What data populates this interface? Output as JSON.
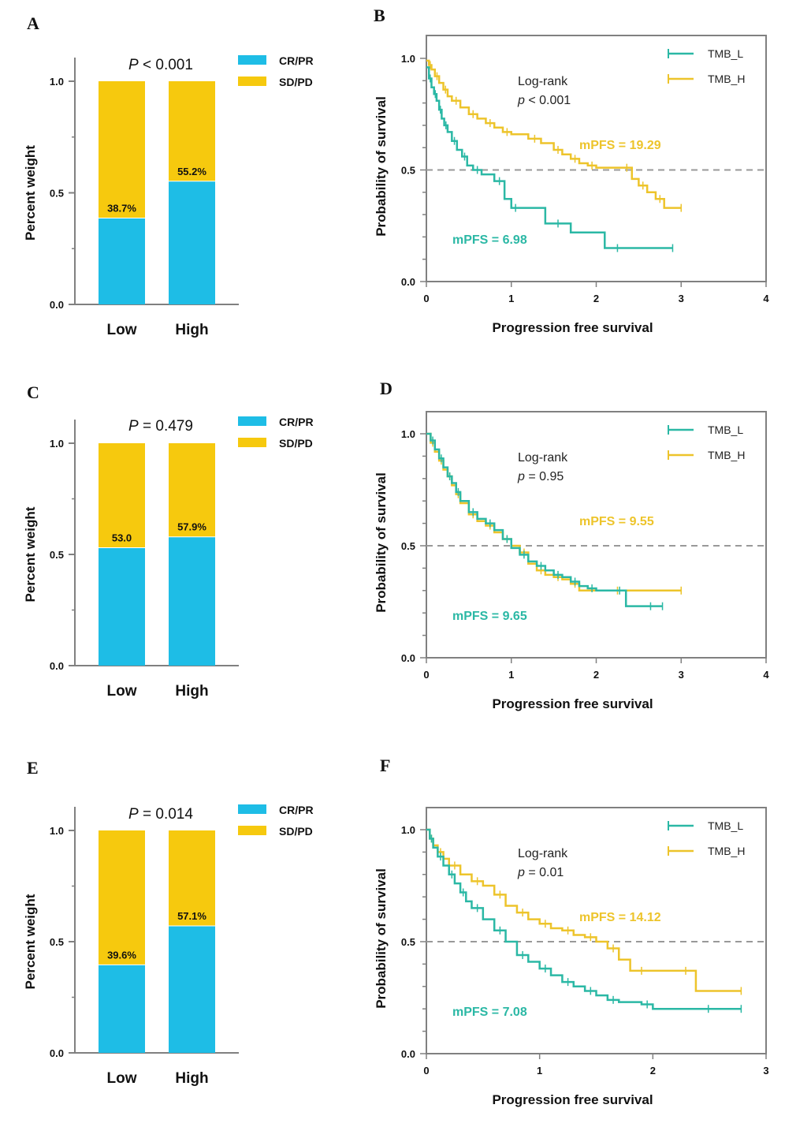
{
  "colors": {
    "cr_pr": "#1EBDE6",
    "sd_pd": "#F6C90E",
    "tmb_l": "#2BB8A5",
    "tmb_h": "#EDC42B",
    "axis": "#808080",
    "ref_line": "#999999"
  },
  "chart_data": [
    {
      "id": "A",
      "type": "bar",
      "panel_label": "A",
      "p_prefix": "P",
      "p_rest": " < 0.001",
      "ylabel": "Percent weight",
      "ylim": [
        0,
        1.0
      ],
      "yticks": [
        "0.0",
        "0.5",
        "1.0"
      ],
      "categories": [
        "Low",
        "High"
      ],
      "series": [
        {
          "name": "CR/PR",
          "values": [
            0.387,
            0.552
          ]
        },
        {
          "name": "SD/PD",
          "values": [
            0.613,
            0.448
          ]
        }
      ],
      "bar_labels": [
        "38.7%",
        "55.2%"
      ]
    },
    {
      "id": "B",
      "type": "line",
      "panel_label": "B",
      "xlabel": "Progression free survival",
      "ylabel": "Probability of survival",
      "xlim": [
        0,
        4
      ],
      "ylim": [
        0,
        1.0
      ],
      "xticks": [
        "0",
        "1",
        "2",
        "3",
        "4"
      ],
      "yticks": [
        "0.0",
        "0.5",
        "1.0"
      ],
      "legend": [
        "TMB_L",
        "TMB_H"
      ],
      "logrank": "Log-rank",
      "p_prefix": "p",
      "p_rest": " < 0.001",
      "mpfs_h": "mPFS = 19.29",
      "mpfs_l": "mPFS = 6.98",
      "series": [
        {
          "name": "TMB_L",
          "x": [
            0,
            0.03,
            0.06,
            0.09,
            0.12,
            0.15,
            0.18,
            0.21,
            0.25,
            0.3,
            0.36,
            0.42,
            0.48,
            0.55,
            0.65,
            0.8,
            0.92,
            1.0,
            1.1,
            1.4,
            1.7,
            2.1,
            2.4,
            2.9
          ],
          "y": [
            0.96,
            0.91,
            0.87,
            0.84,
            0.81,
            0.77,
            0.73,
            0.7,
            0.67,
            0.63,
            0.59,
            0.56,
            0.52,
            0.5,
            0.48,
            0.45,
            0.37,
            0.33,
            0.33,
            0.26,
            0.22,
            0.15,
            0.15,
            0.15
          ]
        },
        {
          "name": "TMB_H",
          "x": [
            0,
            0.03,
            0.06,
            0.1,
            0.15,
            0.2,
            0.25,
            0.3,
            0.4,
            0.5,
            0.6,
            0.7,
            0.8,
            0.9,
            1.0,
            1.2,
            1.35,
            1.5,
            1.6,
            1.7,
            1.8,
            1.9,
            2.0,
            2.3,
            2.42,
            2.5,
            2.6,
            2.7,
            2.8,
            3.0
          ],
          "y": [
            0.99,
            0.97,
            0.95,
            0.92,
            0.89,
            0.86,
            0.83,
            0.81,
            0.78,
            0.75,
            0.73,
            0.71,
            0.69,
            0.67,
            0.66,
            0.64,
            0.62,
            0.59,
            0.57,
            0.55,
            0.53,
            0.52,
            0.51,
            0.51,
            0.46,
            0.43,
            0.4,
            0.37,
            0.33,
            0.33
          ]
        }
      ]
    },
    {
      "id": "C",
      "type": "bar",
      "panel_label": "C",
      "p_prefix": "P",
      "p_rest": " = 0.479",
      "ylabel": "Percent weight",
      "ylim": [
        0,
        1.0
      ],
      "yticks": [
        "0.0",
        "0.5",
        "1.0"
      ],
      "categories": [
        "Low",
        "High"
      ],
      "series": [
        {
          "name": "CR/PR",
          "values": [
            0.53,
            0.579
          ]
        },
        {
          "name": "SD/PD",
          "values": [
            0.47,
            0.421
          ]
        }
      ],
      "bar_labels": [
        "53.0",
        "57.9%"
      ]
    },
    {
      "id": "D",
      "type": "line",
      "panel_label": "D",
      "xlabel": "Progression free survival",
      "ylabel": "Probability of survival",
      "xlim": [
        0,
        4
      ],
      "ylim": [
        0,
        1.0
      ],
      "xticks": [
        "0",
        "1",
        "2",
        "3",
        "4"
      ],
      "yticks": [
        "0.0",
        "0.5",
        "1.0"
      ],
      "legend": [
        "TMB_L",
        "TMB_H"
      ],
      "logrank": "Log-rank",
      "p_prefix": "p",
      "p_rest": " = 0.95",
      "mpfs_h": "mPFS = 9.55",
      "mpfs_l": "mPFS = 9.65",
      "series": [
        {
          "name": "TMB_L",
          "x": [
            0,
            0.05,
            0.1,
            0.15,
            0.2,
            0.25,
            0.3,
            0.35,
            0.4,
            0.5,
            0.6,
            0.7,
            0.8,
            0.9,
            1.0,
            1.1,
            1.2,
            1.3,
            1.4,
            1.5,
            1.6,
            1.7,
            1.8,
            1.9,
            2.0,
            2.2,
            2.35,
            2.5,
            2.78
          ],
          "y": [
            1.0,
            0.97,
            0.93,
            0.89,
            0.85,
            0.81,
            0.78,
            0.74,
            0.7,
            0.65,
            0.62,
            0.6,
            0.57,
            0.53,
            0.49,
            0.46,
            0.43,
            0.41,
            0.39,
            0.37,
            0.36,
            0.34,
            0.32,
            0.31,
            0.3,
            0.3,
            0.23,
            0.23,
            0.23
          ]
        },
        {
          "name": "TMB_H",
          "x": [
            0,
            0.05,
            0.1,
            0.15,
            0.2,
            0.25,
            0.3,
            0.35,
            0.4,
            0.5,
            0.6,
            0.7,
            0.8,
            0.9,
            1.0,
            1.1,
            1.2,
            1.3,
            1.4,
            1.5,
            1.6,
            1.7,
            1.8,
            2.0,
            2.5,
            3.0
          ],
          "y": [
            1.0,
            0.96,
            0.92,
            0.88,
            0.84,
            0.81,
            0.77,
            0.73,
            0.69,
            0.64,
            0.61,
            0.59,
            0.56,
            0.53,
            0.5,
            0.47,
            0.42,
            0.39,
            0.37,
            0.36,
            0.35,
            0.33,
            0.3,
            0.3,
            0.3,
            0.3
          ]
        }
      ]
    },
    {
      "id": "E",
      "type": "bar",
      "panel_label": "E",
      "p_prefix": "P",
      "p_rest": " = 0.014",
      "ylabel": "Percent weight",
      "ylim": [
        0,
        1.0
      ],
      "yticks": [
        "0.0",
        "0.5",
        "1.0"
      ],
      "categories": [
        "Low",
        "High"
      ],
      "series": [
        {
          "name": "CR/PR",
          "values": [
            0.396,
            0.571
          ]
        },
        {
          "name": "SD/PD",
          "values": [
            0.604,
            0.429
          ]
        }
      ],
      "bar_labels": [
        "39.6%",
        "57.1%"
      ]
    },
    {
      "id": "F",
      "type": "line",
      "panel_label": "F",
      "xlabel": "Progression free survival",
      "ylabel": "Probability of survival",
      "xlim": [
        0,
        3
      ],
      "ylim": [
        0,
        1.0
      ],
      "xticks": [
        "0",
        "1",
        "2",
        "3"
      ],
      "yticks": [
        "0.0",
        "0.5",
        "1.0"
      ],
      "legend": [
        "TMB_L",
        "TMB_H"
      ],
      "logrank": "Log-rank",
      "p_prefix": "p",
      "p_rest": " = 0.01",
      "mpfs_h": "mPFS = 14.12",
      "mpfs_l": "mPFS = 7.08",
      "series": [
        {
          "name": "TMB_L",
          "x": [
            0,
            0.03,
            0.06,
            0.1,
            0.15,
            0.2,
            0.25,
            0.3,
            0.35,
            0.4,
            0.5,
            0.6,
            0.7,
            0.8,
            0.9,
            1.0,
            1.1,
            1.2,
            1.3,
            1.4,
            1.5,
            1.6,
            1.7,
            1.9,
            2.0,
            2.2,
            2.78
          ],
          "y": [
            1.0,
            0.96,
            0.92,
            0.88,
            0.84,
            0.8,
            0.76,
            0.72,
            0.68,
            0.65,
            0.6,
            0.55,
            0.5,
            0.44,
            0.41,
            0.38,
            0.35,
            0.32,
            0.3,
            0.28,
            0.26,
            0.24,
            0.23,
            0.22,
            0.2,
            0.2,
            0.2
          ]
        },
        {
          "name": "TMB_H",
          "x": [
            0,
            0.03,
            0.06,
            0.1,
            0.15,
            0.2,
            0.3,
            0.4,
            0.5,
            0.6,
            0.7,
            0.8,
            0.9,
            1.0,
            1.1,
            1.2,
            1.3,
            1.4,
            1.5,
            1.6,
            1.7,
            1.8,
            2.0,
            2.2,
            2.38,
            2.78
          ],
          "y": [
            1.0,
            0.96,
            0.93,
            0.9,
            0.87,
            0.84,
            0.8,
            0.77,
            0.75,
            0.71,
            0.66,
            0.63,
            0.6,
            0.58,
            0.56,
            0.55,
            0.53,
            0.52,
            0.5,
            0.47,
            0.42,
            0.37,
            0.37,
            0.37,
            0.28,
            0.28
          ]
        }
      ]
    }
  ],
  "bar_legend": [
    "CR/PR",
    "SD/PD"
  ]
}
